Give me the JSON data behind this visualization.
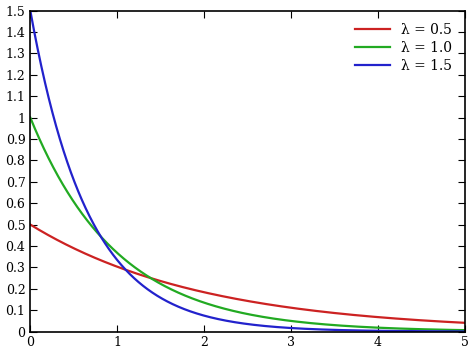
{
  "lambdas": [
    0.5,
    1.0,
    1.5
  ],
  "lambda_labels": [
    "λ = 0.5",
    "λ = 1.0",
    "λ = 1.5"
  ],
  "colors": [
    "#cc2222",
    "#22aa22",
    "#2222cc"
  ],
  "xlim": [
    0,
    5
  ],
  "ylim": [
    0,
    1.5
  ],
  "xticks": [
    0,
    1,
    2,
    3,
    4,
    5
  ],
  "yticks": [
    0,
    0.1,
    0.2,
    0.3,
    0.4,
    0.5,
    0.6,
    0.7,
    0.8,
    0.9,
    1.0,
    1.1,
    1.2,
    1.3,
    1.4,
    1.5
  ],
  "background_color": "#ffffff",
  "line_width": 1.6,
  "legend_fontsize": 10,
  "tick_fontsize": 9,
  "legend_loc": "upper right"
}
